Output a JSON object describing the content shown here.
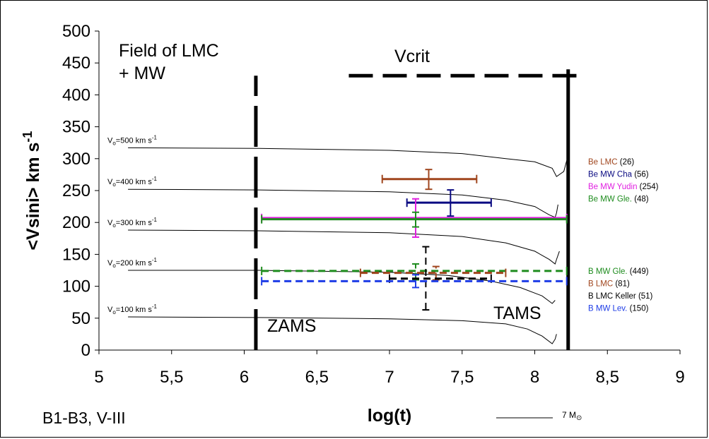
{
  "chart_data": {
    "type": "line",
    "title": "",
    "xlabel": "log(t)",
    "ylabel": "<Vsini> km s",
    "ylabel_superscript": "-1",
    "xlim": [
      5,
      9
    ],
    "ylim": [
      0,
      500
    ],
    "xticks": [
      5,
      5.5,
      6,
      6.5,
      7,
      7.5,
      8,
      8.5,
      9
    ],
    "xtick_labels": [
      "5",
      "5,5",
      "6",
      "6,5",
      "7",
      "7,5",
      "8",
      "8,5",
      "9"
    ],
    "yticks": [
      0,
      50,
      100,
      150,
      200,
      250,
      300,
      350,
      400,
      450,
      500
    ],
    "ytick_labels": [
      "0",
      "50",
      "100",
      "150",
      "200",
      "250",
      "300",
      "350",
      "400",
      "450",
      "500"
    ],
    "corner_title": [
      "Field of LMC",
      "+ MW"
    ],
    "bottom_left_label": "B1-B3, V-III",
    "mass_legend": {
      "text": "7 M",
      "symbol": "⊙",
      "color": "#000000"
    },
    "zams": {
      "label": "ZAMS",
      "x": 6.08,
      "y_from": 0,
      "y_to": 430
    },
    "tams": {
      "label": "TAMS",
      "x": 8.23,
      "y_from": 0,
      "y_to": 440
    },
    "vcrit": {
      "label": "Vcrit",
      "y": 430,
      "x_from": 6.72,
      "x_to": 8.33
    },
    "tracks": [
      {
        "v0_label": "500",
        "points": [
          [
            5.2,
            317
          ],
          [
            6.1,
            316
          ],
          [
            7.0,
            313
          ],
          [
            7.5,
            308
          ],
          [
            7.8,
            300
          ],
          [
            8.0,
            295
          ],
          [
            8.12,
            285
          ],
          [
            8.15,
            272
          ],
          [
            8.2,
            280
          ],
          [
            8.22,
            297
          ]
        ]
      },
      {
        "v0_label": "400",
        "points": [
          [
            5.2,
            252
          ],
          [
            6.1,
            251
          ],
          [
            7.0,
            248
          ],
          [
            7.5,
            243
          ],
          [
            7.8,
            235
          ],
          [
            8.0,
            225
          ],
          [
            8.1,
            212
          ],
          [
            8.14,
            208
          ],
          [
            8.15,
            215
          ],
          [
            8.16,
            228
          ]
        ]
      },
      {
        "v0_label": "300",
        "points": [
          [
            5.2,
            188
          ],
          [
            6.1,
            187
          ],
          [
            7.0,
            184
          ],
          [
            7.5,
            178
          ],
          [
            7.8,
            168
          ],
          [
            8.0,
            155
          ],
          [
            8.1,
            142
          ],
          [
            8.14,
            135
          ],
          [
            8.15,
            142
          ],
          [
            8.17,
            155
          ]
        ]
      },
      {
        "v0_label": "200",
        "points": [
          [
            5.2,
            125
          ],
          [
            6.1,
            125
          ],
          [
            7.0,
            122
          ],
          [
            7.4,
            117
          ],
          [
            7.7,
            108
          ],
          [
            7.9,
            98
          ],
          [
            8.05,
            85
          ],
          [
            8.12,
            73
          ],
          [
            8.14,
            78
          ]
        ]
      },
      {
        "v0_label": "100",
        "points": [
          [
            5.2,
            52
          ],
          [
            6.1,
            51
          ],
          [
            7.0,
            49
          ],
          [
            7.5,
            46
          ],
          [
            7.8,
            41
          ],
          [
            7.95,
            33
          ],
          [
            8.05,
            22
          ],
          [
            8.12,
            10
          ],
          [
            8.14,
            17
          ],
          [
            8.15,
            25
          ]
        ]
      }
    ],
    "track_label_unit": "km s",
    "track_label_unit_exp": "-1",
    "track_label_prefix": "V",
    "track_label_sub": "o",
    "be_series": [
      {
        "name": "Be LMC",
        "count": "(26)",
        "color": "#A0461E",
        "x": 7.27,
        "y": 268,
        "xerr": [
          6.95,
          7.6
        ],
        "yerr": [
          252,
          283
        ]
      },
      {
        "name": "Be MW Cha",
        "count": "(56)",
        "color": "#0A0A82",
        "x": 7.42,
        "y": 231,
        "xerr": [
          7.12,
          7.7
        ],
        "yerr": [
          210,
          251
        ]
      },
      {
        "name": "Be MW Yudin",
        "count": "(254)",
        "color": "#E020E0",
        "x": 7.18,
        "y": 207,
        "xerr": [
          6.12,
          8.22
        ],
        "yerr": [
          177,
          237
        ]
      },
      {
        "name": "Be MW Gle.",
        "count": "(48)",
        "color": "#1E8C1E",
        "x": 7.18,
        "y": 205,
        "xerr": [
          6.12,
          8.22
        ],
        "yerr": [
          193,
          216
        ]
      }
    ],
    "b_series": [
      {
        "name": "B MW Gle.",
        "count": "(449)",
        "color": "#1E8C1E",
        "dashed": true,
        "x": 7.18,
        "y": 124,
        "xerr": [
          6.12,
          8.22
        ],
        "yerr": [
          110,
          135
        ]
      },
      {
        "name": "B LMC",
        "count": "(81)",
        "color": "#A0461E",
        "dashed": true,
        "x": 7.32,
        "y": 121,
        "xerr": [
          6.8,
          7.8
        ],
        "yerr": [
          110,
          131
        ]
      },
      {
        "name": "B LMC Keller",
        "count": "(51)",
        "color": "#000000",
        "dashed": true,
        "x": 7.25,
        "y": 112,
        "xerr": [
          7.0,
          7.7
        ],
        "yerr": [
          63,
          162
        ]
      },
      {
        "name": "B MW Lev.",
        "count": "(150)",
        "color": "#1E3CE6",
        "dashed": true,
        "x": 7.18,
        "y": 108,
        "xerr": [
          6.12,
          8.22
        ],
        "yerr": [
          98,
          118
        ]
      }
    ]
  }
}
